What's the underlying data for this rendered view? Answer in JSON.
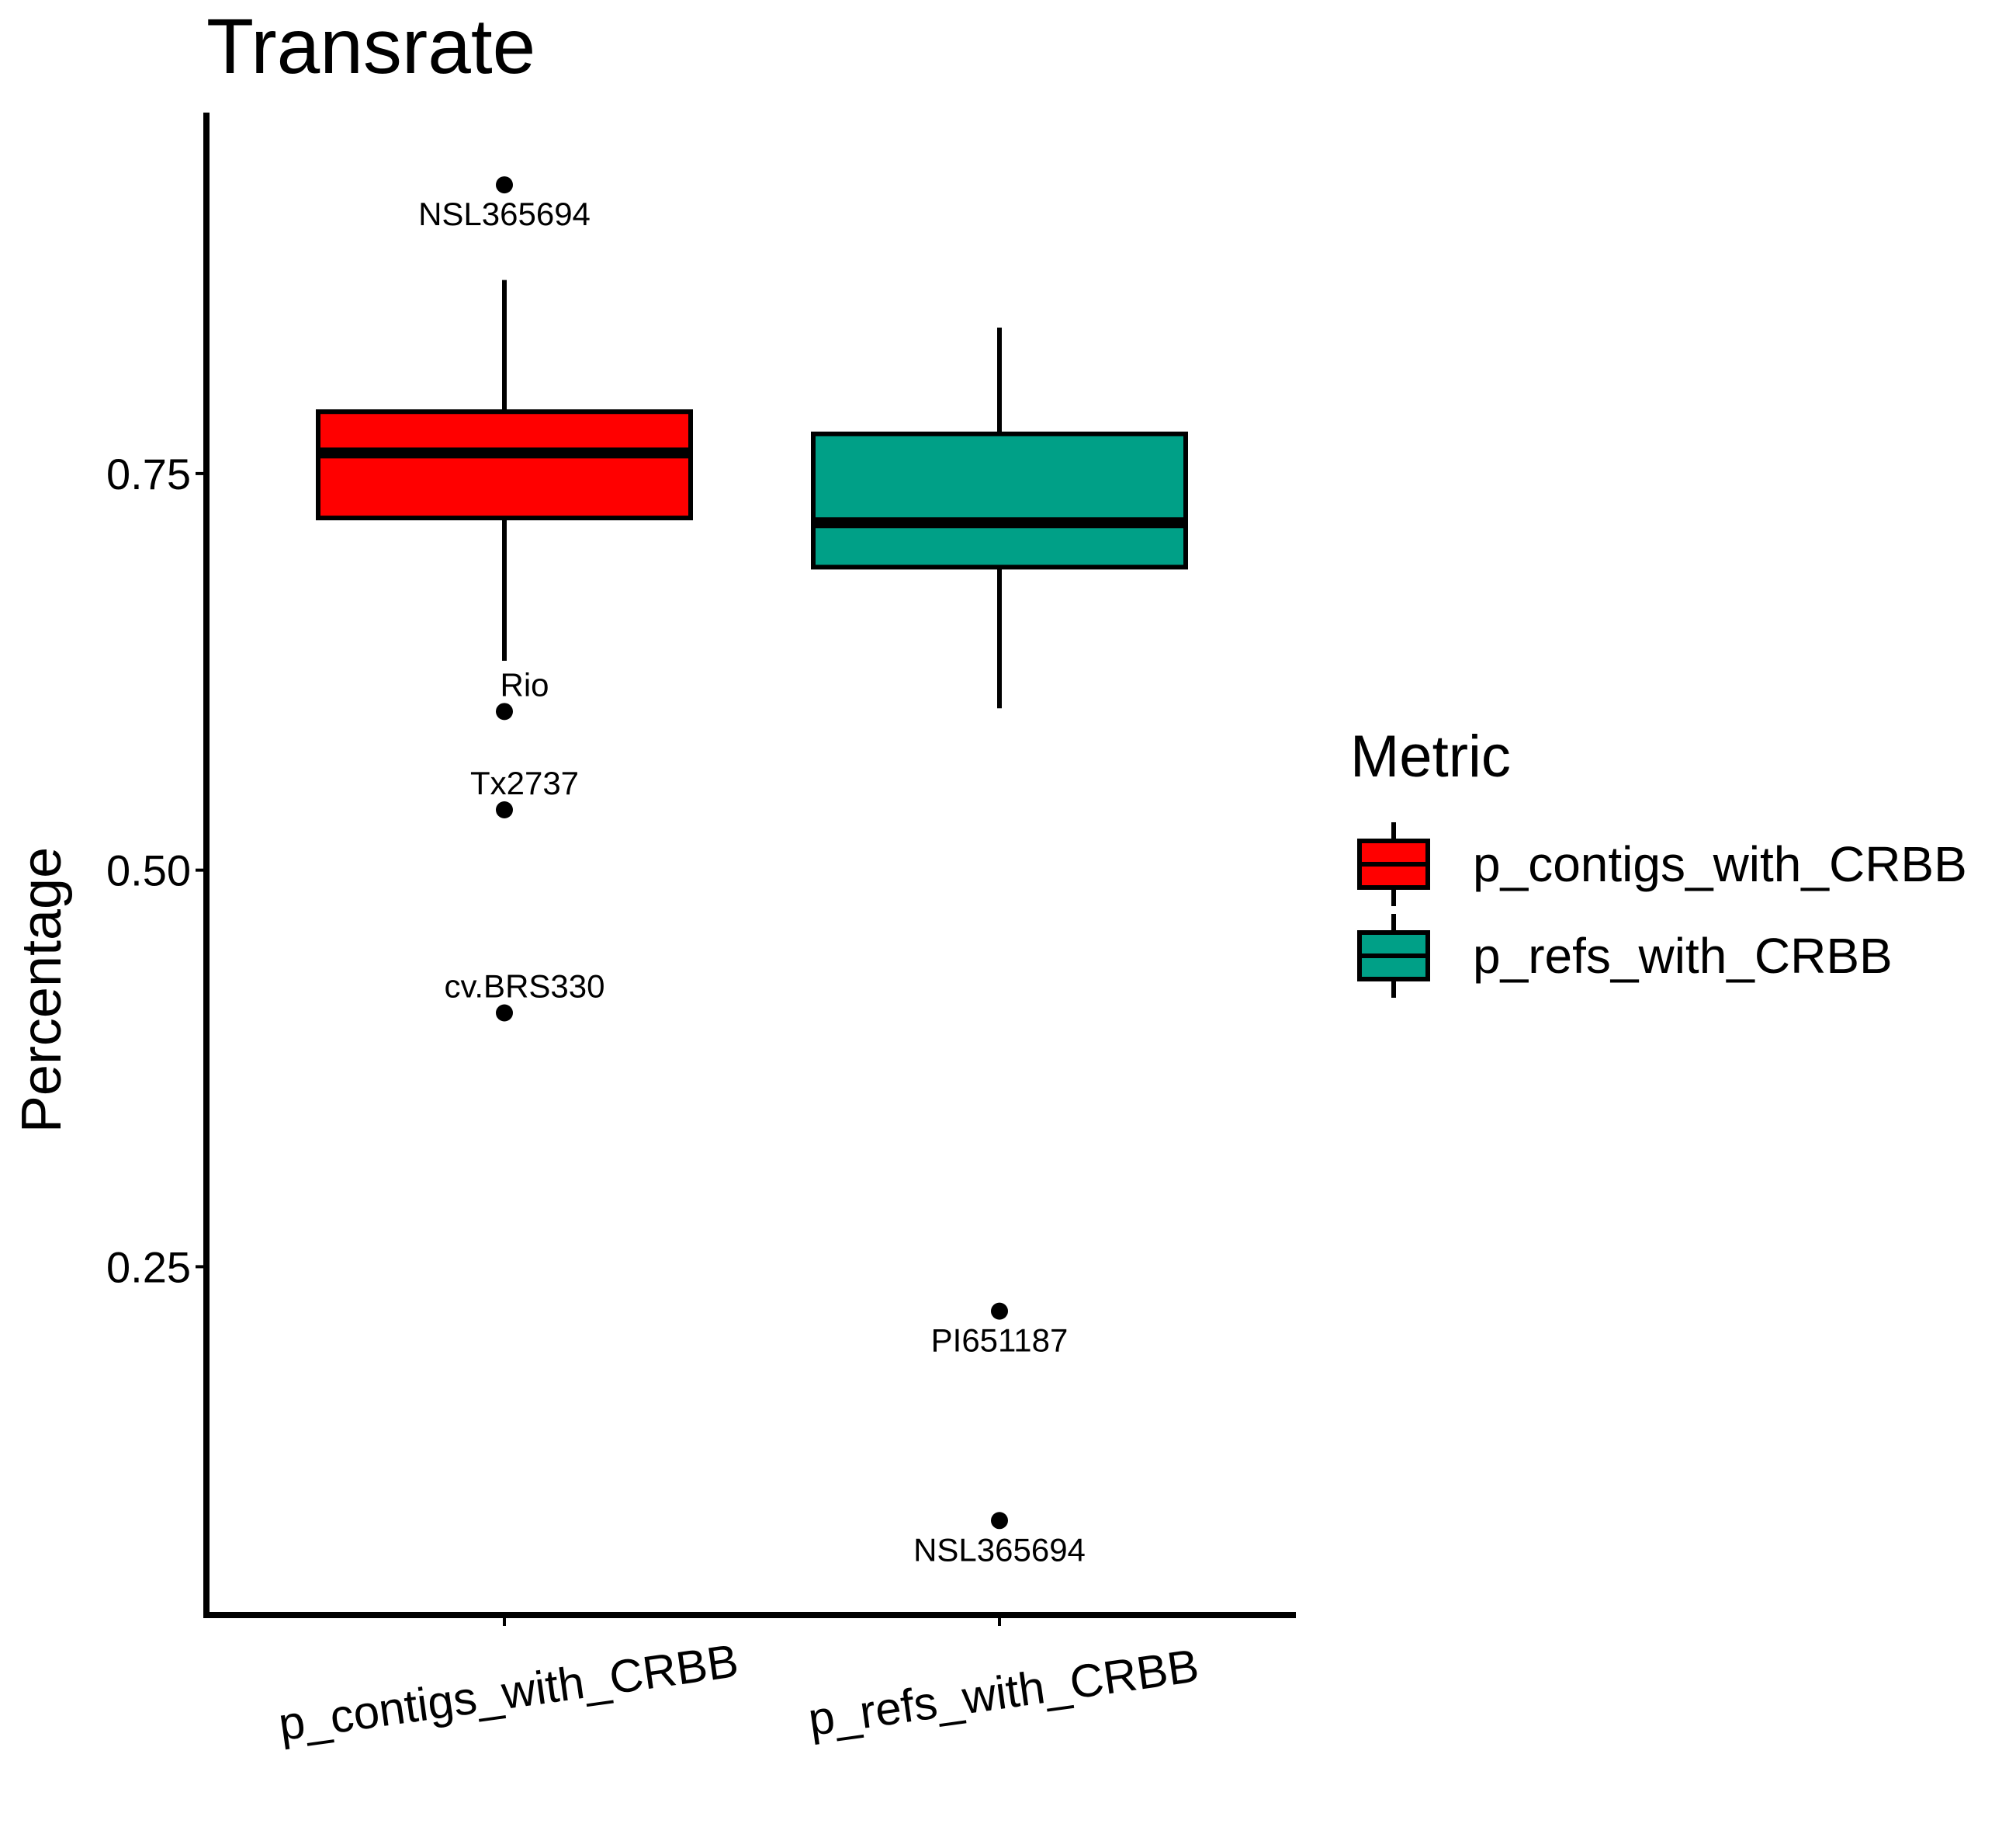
{
  "chart_data": {
    "type": "boxplot",
    "title": "Transrate",
    "xlabel": "",
    "ylabel": "Percentage",
    "ylim": [
      0.05,
      0.98
    ],
    "yticks": [
      0.25,
      0.5,
      0.75
    ],
    "ytick_labels": [
      "0.25",
      "0.50",
      "0.75"
    ],
    "grid": false,
    "categories": [
      "p_contigs_with_CRBB",
      "p_refs_with_CRBB"
    ],
    "series": [
      {
        "name": "p_contigs_with_CRBB",
        "color": "#FF0000",
        "whisker_low": 0.632,
        "q1": 0.722,
        "median": 0.763,
        "q3": 0.789,
        "whisker_high": 0.872,
        "outliers": [
          {
            "label": "NSL365694",
            "value": 0.932
          },
          {
            "label": "Rio",
            "value": 0.6
          },
          {
            "label": "Tx2737",
            "value": 0.538
          },
          {
            "label": "cv.BRS330",
            "value": 0.41
          }
        ]
      },
      {
        "name": "p_refs_with_CRBB",
        "color": "#00A087",
        "whisker_low": 0.602,
        "q1": 0.691,
        "median": 0.719,
        "q3": 0.775,
        "whisker_high": 0.842,
        "outliers": [
          {
            "label": "PI651187",
            "value": 0.222
          },
          {
            "label": "NSL365694",
            "value": 0.09
          }
        ]
      }
    ],
    "legend": {
      "title": "Metric",
      "placement": "right",
      "entries": [
        "p_contigs_with_CRBB",
        "p_refs_with_CRBB"
      ]
    }
  }
}
